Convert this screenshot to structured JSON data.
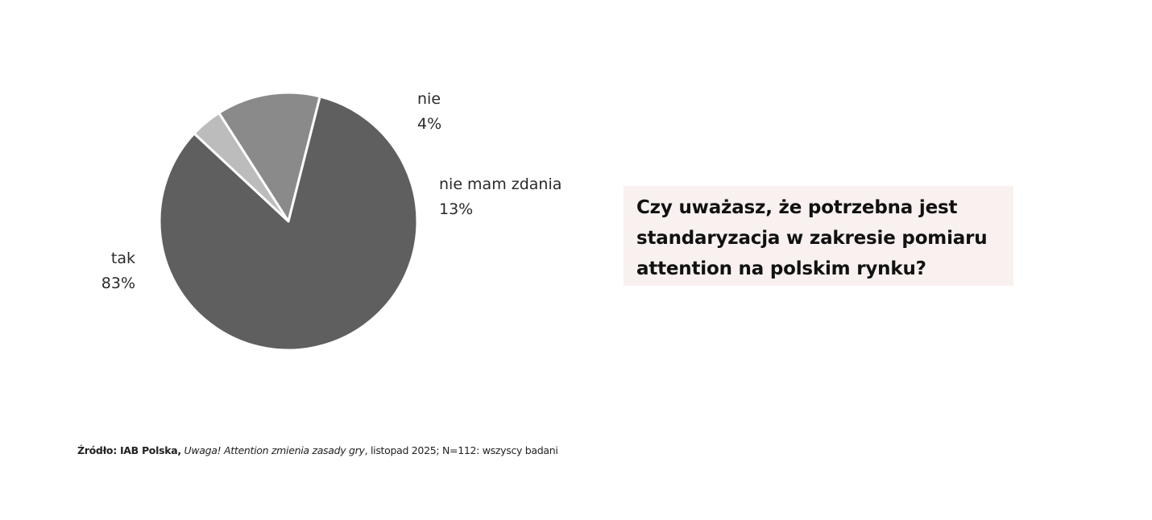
{
  "chart_data": {
    "type": "pie",
    "title": "",
    "slices": [
      {
        "label": "tak",
        "value": 83,
        "value_label": "83%",
        "color": "#5f5f5f"
      },
      {
        "label": "nie",
        "value": 4,
        "value_label": "4%",
        "color": "#bcbcbc"
      },
      {
        "label": "nie mam zdania",
        "value": 13,
        "value_label": "13%",
        "color": "#8a8a8a"
      }
    ],
    "start_angle_deg": 313,
    "direction": "clockwise",
    "order": [
      "nie",
      "nie mam zdania",
      "tak"
    ],
    "separator_color": "#ffffff"
  },
  "question": {
    "line1": "Czy uważasz, że potrzebna jest",
    "line2": "standaryzacja w zakresie pomiaru",
    "line3": "attention na polskim rynku?",
    "background": "#f8f1ef"
  },
  "source": {
    "prefix": "Źródło: IAB Polska,",
    "title": "Uwaga! Attention zmienia zasady gry",
    "suffix": ", listopad 2025; N=112: wszyscy badani"
  }
}
